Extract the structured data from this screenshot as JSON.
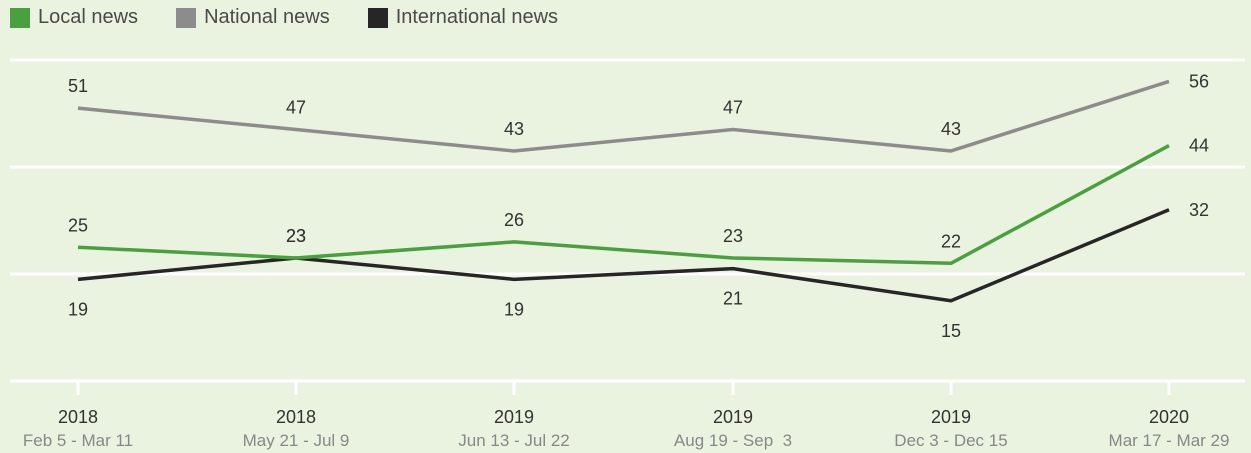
{
  "chart_data": {
    "type": "line",
    "categories": [
      {
        "year": "2018",
        "range": "Feb 5 - Mar 11"
      },
      {
        "year": "2018",
        "range": "May 21 - Jul 9"
      },
      {
        "year": "2019",
        "range": "Jun 13 - Jul 22"
      },
      {
        "year": "2019",
        "range": "Aug 19 - Sep  3"
      },
      {
        "year": "2019",
        "range": "Dec 3 - Dec 15"
      },
      {
        "year": "2020",
        "range": "Mar 17 - Mar 29"
      }
    ],
    "series": [
      {
        "name": "Local news",
        "color": "#4aa03f",
        "values": [
          25,
          23,
          26,
          23,
          22,
          44
        ]
      },
      {
        "name": "National news",
        "color": "#8c8c8c",
        "values": [
          51,
          47,
          43,
          47,
          43,
          56
        ]
      },
      {
        "name": "International news",
        "color": "#262626",
        "values": [
          19,
          23,
          19,
          21,
          15,
          32
        ]
      }
    ],
    "ylim": [
      0,
      60
    ],
    "gridlines": [
      0,
      20,
      40,
      60
    ],
    "legend_position": "top-left"
  }
}
